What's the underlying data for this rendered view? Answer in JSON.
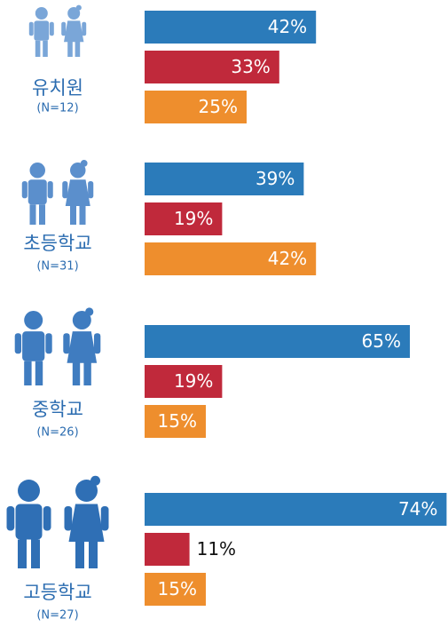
{
  "chart_data": {
    "type": "bar",
    "orientation": "horizontal",
    "categories": [
      "유치원",
      "초등학교",
      "중학교",
      "고등학교"
    ],
    "sample_sizes": [
      "(N=12)",
      "(N=31)",
      "(N=26)",
      "(N=27)"
    ],
    "series": [
      {
        "color": "#2b7bba",
        "values": [
          42,
          39,
          65,
          74
        ],
        "value_labels": [
          "42%",
          "39%",
          "65%",
          "74%"
        ]
      },
      {
        "color": "#c0293b",
        "values": [
          33,
          19,
          19,
          11
        ],
        "value_labels": [
          "33%",
          "19%",
          "19%",
          "11%"
        ]
      },
      {
        "color": "#ee8e2d",
        "values": [
          25,
          42,
          15,
          15
        ],
        "value_labels": [
          "25%",
          "42%",
          "15%",
          "15%"
        ]
      }
    ]
  }
}
